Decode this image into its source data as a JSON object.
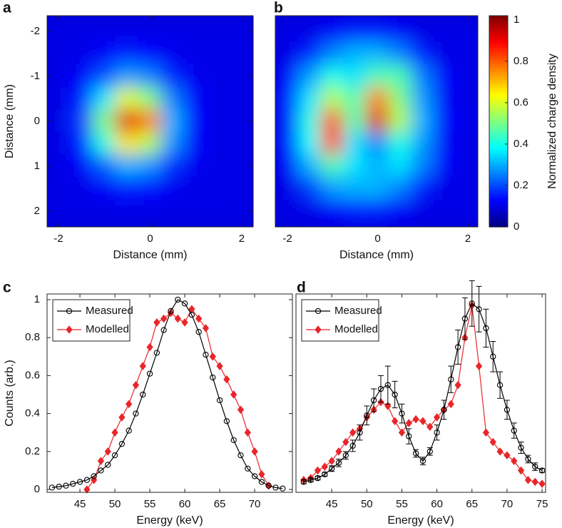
{
  "chart_data": [
    {
      "type": "heatmap",
      "panel": "a",
      "xlabel": "Distance (mm)",
      "ylabel": "Distance (mm)",
      "xlim": [
        -2.25,
        2.25
      ],
      "ylim": [
        -2.35,
        2.35
      ],
      "y_inverted": true,
      "xticks": [
        -2,
        0,
        2
      ],
      "yticks": [
        -2,
        -1,
        0,
        1,
        2
      ],
      "x": [
        -2,
        -1.5,
        -1,
        -0.5,
        0,
        0.5,
        1,
        1.5,
        2
      ],
      "y": [
        -2,
        -1.5,
        -1,
        -0.5,
        0,
        0.5,
        1,
        1.5,
        2
      ],
      "z": [
        [
          0.1,
          0.1,
          0.1,
          0.1,
          0.1,
          0.1,
          0.1,
          0.1,
          0.1
        ],
        [
          0.1,
          0.1,
          0.12,
          0.15,
          0.13,
          0.11,
          0.1,
          0.1,
          0.1
        ],
        [
          0.1,
          0.12,
          0.2,
          0.28,
          0.25,
          0.16,
          0.11,
          0.1,
          0.1
        ],
        [
          0.1,
          0.15,
          0.35,
          0.6,
          0.5,
          0.25,
          0.12,
          0.1,
          0.1
        ],
        [
          0.1,
          0.18,
          0.5,
          0.9,
          0.75,
          0.3,
          0.13,
          0.1,
          0.1
        ],
        [
          0.1,
          0.16,
          0.4,
          0.65,
          0.55,
          0.27,
          0.12,
          0.1,
          0.1
        ],
        [
          0.1,
          0.12,
          0.22,
          0.3,
          0.27,
          0.17,
          0.11,
          0.1,
          0.1
        ],
        [
          0.1,
          0.1,
          0.12,
          0.15,
          0.14,
          0.11,
          0.1,
          0.1,
          0.1
        ],
        [
          0.1,
          0.1,
          0.1,
          0.1,
          0.1,
          0.1,
          0.1,
          0.1,
          0.1
        ]
      ]
    },
    {
      "type": "heatmap",
      "panel": "b",
      "xlabel": "Distance (mm)",
      "xlim": [
        -2.27,
        2.22
      ],
      "ylim": [
        -2.35,
        2.35
      ],
      "y_inverted": true,
      "xticks": [
        -2,
        0,
        2
      ],
      "x": [
        -2,
        -1.5,
        -1,
        -0.5,
        0,
        0.5,
        1,
        1.5,
        2
      ],
      "y": [
        -2,
        -1.5,
        -1,
        -0.5,
        0,
        0.5,
        1,
        1.5,
        2
      ],
      "z": [
        [
          0.1,
          0.1,
          0.12,
          0.15,
          0.15,
          0.12,
          0.1,
          0.1,
          0.1
        ],
        [
          0.1,
          0.15,
          0.25,
          0.3,
          0.3,
          0.25,
          0.15,
          0.1,
          0.1
        ],
        [
          0.12,
          0.28,
          0.4,
          0.35,
          0.45,
          0.45,
          0.25,
          0.12,
          0.1
        ],
        [
          0.15,
          0.35,
          0.55,
          0.45,
          0.75,
          0.5,
          0.28,
          0.12,
          0.1
        ],
        [
          0.15,
          0.4,
          0.8,
          0.45,
          0.9,
          0.55,
          0.3,
          0.13,
          0.1
        ],
        [
          0.15,
          0.38,
          0.8,
          0.35,
          0.25,
          0.4,
          0.28,
          0.12,
          0.1
        ],
        [
          0.12,
          0.3,
          0.45,
          0.35,
          0.3,
          0.35,
          0.25,
          0.12,
          0.1
        ],
        [
          0.1,
          0.18,
          0.28,
          0.3,
          0.3,
          0.25,
          0.15,
          0.1,
          0.1
        ],
        [
          0.1,
          0.1,
          0.12,
          0.15,
          0.15,
          0.12,
          0.1,
          0.1,
          0.1
        ]
      ],
      "colorbar": {
        "label": "Normalized charge density",
        "lim": [
          0,
          1.02
        ],
        "ticks": [
          0,
          0.2,
          0.4,
          0.6,
          0.8,
          1
        ]
      }
    },
    {
      "type": "line",
      "panel": "c",
      "xlabel": "Energy (keV)",
      "ylabel": "Counts (arb.)",
      "xlim": [
        40.3,
        75.4
      ],
      "ylim": [
        -0.015,
        1.03
      ],
      "xticks": [
        45,
        50,
        55,
        60,
        65,
        70
      ],
      "yticks": [
        0,
        0.2,
        0.4,
        0.6,
        0.8,
        1
      ],
      "legend": "upper left",
      "series": [
        {
          "name": "Measured",
          "color": "#000000",
          "marker": "circle",
          "x": [
            41,
            42,
            43,
            44,
            45,
            46,
            47,
            48,
            49,
            50,
            51,
            52,
            53,
            54,
            55,
            56,
            57,
            58,
            59,
            60,
            61,
            62,
            63,
            64,
            65,
            66,
            67,
            68,
            69,
            70,
            71,
            72,
            73,
            74
          ],
          "values": [
            0.01,
            0.015,
            0.02,
            0.03,
            0.04,
            0.05,
            0.07,
            0.1,
            0.13,
            0.18,
            0.24,
            0.31,
            0.4,
            0.5,
            0.61,
            0.72,
            0.84,
            0.94,
            1.0,
            0.98,
            0.92,
            0.83,
            0.71,
            0.59,
            0.47,
            0.36,
            0.26,
            0.18,
            0.11,
            0.07,
            0.04,
            0.02,
            0.01,
            0.005
          ]
        },
        {
          "name": "Modelled",
          "color": "#e8262a",
          "marker": "diamond",
          "x": [
            41,
            42,
            43,
            44,
            45,
            46,
            47,
            48,
            49,
            50,
            51,
            52,
            53,
            54,
            55,
            56,
            57,
            58,
            59,
            60,
            61,
            62,
            63,
            64,
            65,
            66,
            67,
            68,
            69,
            70,
            71,
            72,
            73,
            74
          ],
          "values": [
            null,
            null,
            null,
            null,
            null,
            0,
            0.05,
            0.15,
            0.2,
            0.3,
            0.38,
            0.45,
            0.55,
            0.65,
            0.75,
            0.88,
            0.9,
            0.93,
            0.9,
            0.88,
            0.95,
            0.9,
            0.85,
            0.7,
            0.65,
            0.58,
            0.5,
            0.42,
            0.3,
            0.2,
            0.08,
            0.02,
            null,
            null
          ]
        }
      ]
    },
    {
      "type": "line",
      "panel": "d",
      "xlabel": "Energy (keV)",
      "xlim": [
        39.9,
        75.5
      ],
      "ylim": [
        -0.015,
        1.03
      ],
      "xticks": [
        45,
        50,
        55,
        60,
        65,
        70,
        75
      ],
      "legend": "upper left",
      "series": [
        {
          "name": "Measured",
          "color": "#000000",
          "marker": "circle",
          "x": [
            41,
            42,
            43,
            44,
            45,
            46,
            47,
            48,
            49,
            50,
            51,
            52,
            53,
            54,
            55,
            56,
            57,
            58,
            59,
            60,
            61,
            62,
            63,
            64,
            65,
            66,
            67,
            68,
            69,
            70,
            71,
            72,
            73,
            74,
            75
          ],
          "values": [
            0.04,
            0.05,
            0.06,
            0.08,
            0.11,
            0.14,
            0.18,
            0.23,
            0.3,
            0.39,
            0.47,
            0.53,
            0.55,
            0.5,
            0.4,
            0.28,
            0.19,
            0.15,
            0.2,
            0.3,
            0.42,
            0.58,
            0.75,
            0.9,
            0.98,
            0.95,
            0.85,
            0.7,
            0.55,
            0.42,
            0.31,
            0.22,
            0.16,
            0.12,
            0.1
          ],
          "errors": [
            0.01,
            0.01,
            0.01,
            0.01,
            0.015,
            0.02,
            0.02,
            0.03,
            0.04,
            0.05,
            0.06,
            0.07,
            0.1,
            0.07,
            0.05,
            0.04,
            0.02,
            0.02,
            0.02,
            0.04,
            0.05,
            0.07,
            0.09,
            0.11,
            0.12,
            0.12,
            0.1,
            0.08,
            0.07,
            0.05,
            0.04,
            0.03,
            0.02,
            0.02,
            0.01
          ]
        },
        {
          "name": "Modelled",
          "color": "#e8262a",
          "marker": "diamond",
          "x": [
            41,
            42,
            43,
            44,
            45,
            46,
            47,
            48,
            49,
            50,
            51,
            52,
            53,
            54,
            55,
            56,
            57,
            58,
            59,
            60,
            61,
            62,
            63,
            64,
            65,
            66,
            67,
            68,
            69,
            70,
            71,
            72,
            73,
            74,
            75
          ],
          "values": [
            0.05,
            0.06,
            0.1,
            0.12,
            0.15,
            0.2,
            0.25,
            0.3,
            0.32,
            0.38,
            0.42,
            0.46,
            0.44,
            0.36,
            0.3,
            0.35,
            0.37,
            0.36,
            0.33,
            0.38,
            0.42,
            0.45,
            0.55,
            0.8,
            0.97,
            0.65,
            0.3,
            0.25,
            0.2,
            0.18,
            0.15,
            0.1,
            0.05,
            0.04,
            0.03
          ]
        }
      ]
    }
  ]
}
